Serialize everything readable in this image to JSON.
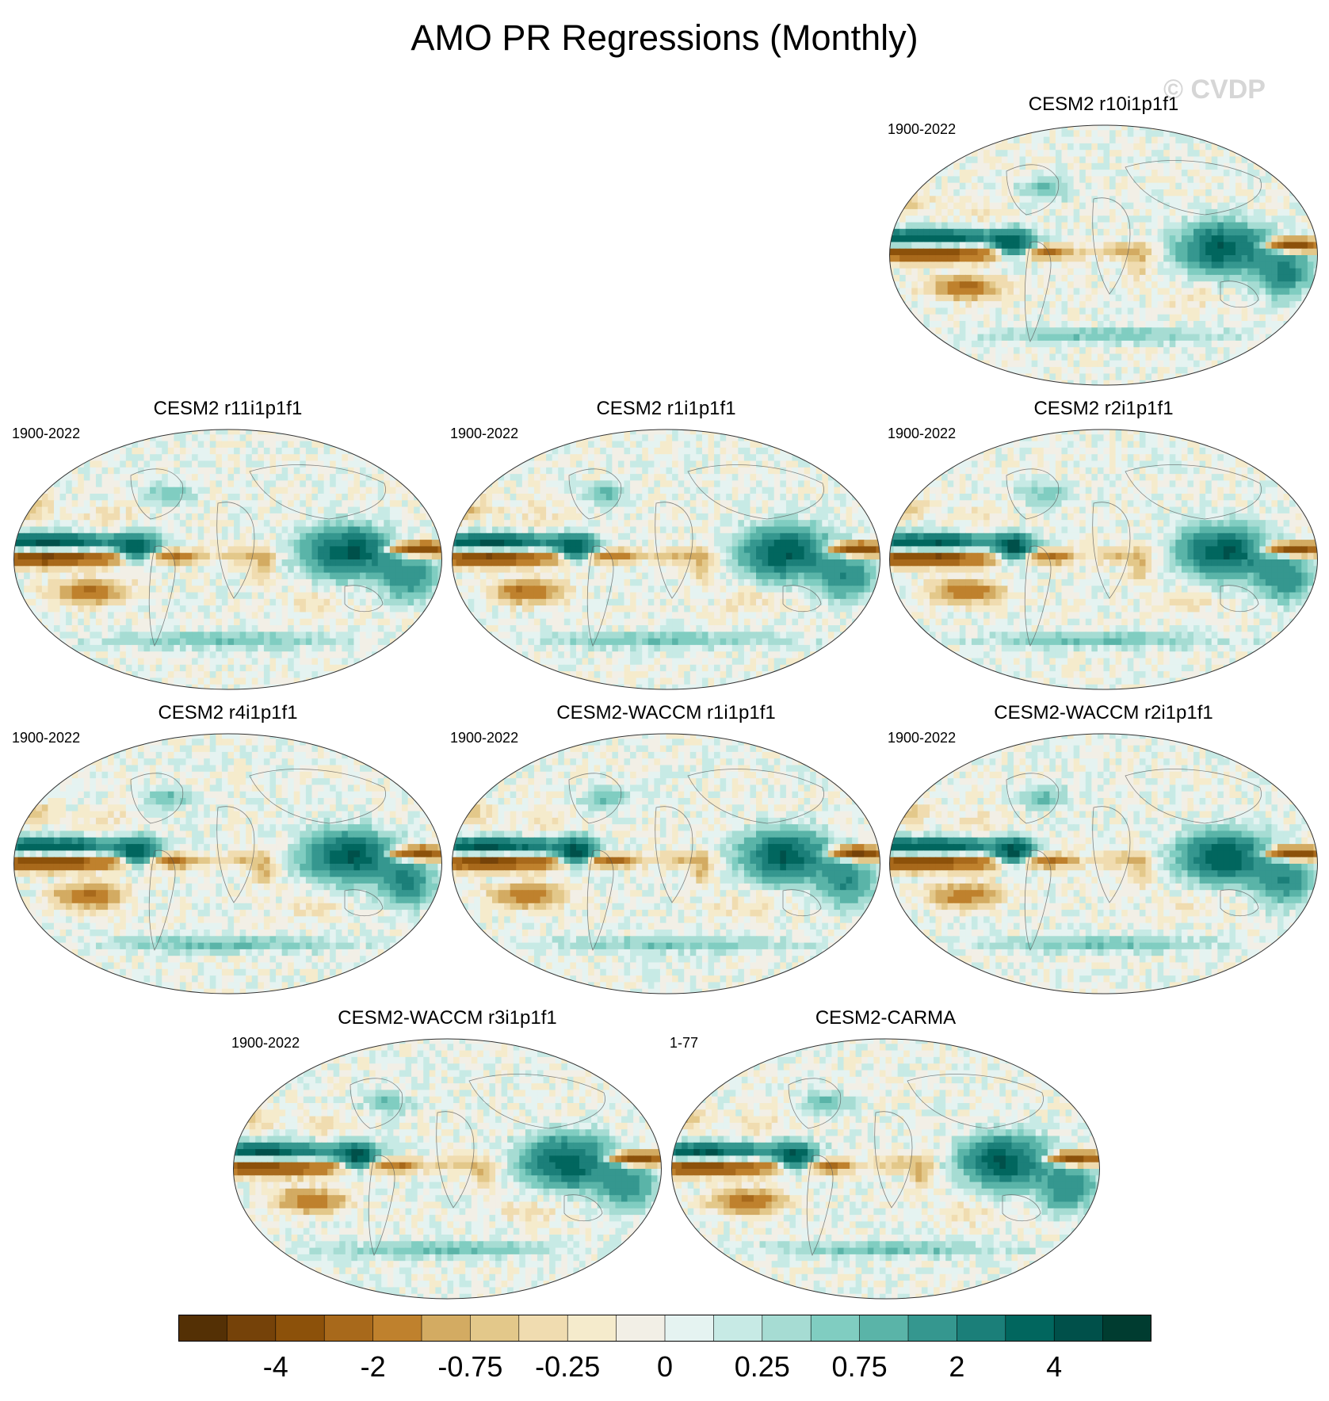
{
  "title": "AMO PR Regressions (Monthly)",
  "watermark": "© CVDP",
  "colors": {
    "palette": [
      "#543005",
      "#754209",
      "#8c510a",
      "#a8691b",
      "#bf812d",
      "#d3ab62",
      "#e3c88a",
      "#f0dcb0",
      "#f5ebcc",
      "#f2efe6",
      "#e5f3f1",
      "#c7eae5",
      "#a6dcd3",
      "#80cdc1",
      "#5ab4a8",
      "#35978f",
      "#1b7f79",
      "#01665e",
      "#00504a",
      "#003c30"
    ]
  },
  "panels": [
    {
      "id": "r10",
      "title": "CESM2 r10i1p1f1",
      "period": "1900-2022"
    },
    {
      "id": "r11",
      "title": "CESM2 r11i1p1f1",
      "period": "1900-2022"
    },
    {
      "id": "r1",
      "title": "CESM2 r1i1p1f1",
      "period": "1900-2022"
    },
    {
      "id": "r2",
      "title": "CESM2 r2i1p1f1",
      "period": "1900-2022"
    },
    {
      "id": "r4",
      "title": "CESM2 r4i1p1f1",
      "period": "1900-2022"
    },
    {
      "id": "w1",
      "title": "CESM2-WACCM r1i1p1f1",
      "period": "1900-2022"
    },
    {
      "id": "w2",
      "title": "CESM2-WACCM r2i1p1f1",
      "period": "1900-2022"
    },
    {
      "id": "w3",
      "title": "CESM2-WACCM r3i1p1f1",
      "period": "1900-2022"
    },
    {
      "id": "carma",
      "title": "CESM2-CARMA",
      "period": "1-77"
    }
  ],
  "chart_data": {
    "type": "heatmap",
    "projection": "robinson-like global maps",
    "variable": "PR regression onto AMO",
    "colorbar": {
      "tick_labels": [
        "-4",
        "-2",
        "-0.75",
        "-0.25",
        "0",
        "0.25",
        "0.75",
        "2",
        "4"
      ],
      "n_bins": 20,
      "tick_bins": [
        2,
        4,
        6,
        8,
        10,
        12,
        14,
        16,
        18
      ]
    },
    "pattern_features": [
      {
        "lon": -150,
        "lat": 12,
        "value": 4,
        "rx": 55,
        "ry": 5
      },
      {
        "lon": -150,
        "lat": 1,
        "value": -4,
        "rx": 55,
        "ry": 5
      },
      {
        "lon": -115,
        "lat": -22,
        "value": -2,
        "rx": 25,
        "ry": 7
      },
      {
        "lon": -170,
        "lat": 35,
        "value": -0.75,
        "rx": 22,
        "ry": 7
      },
      {
        "lon": -75,
        "lat": 8,
        "value": 4,
        "rx": 14,
        "ry": 8
      },
      {
        "lon": -45,
        "lat": 2,
        "value": -2,
        "rx": 20,
        "ry": 4
      },
      {
        "lon": 15,
        "lat": 3,
        "value": -0.75,
        "rx": 22,
        "ry": 5
      },
      {
        "lon": 30,
        "lat": -5,
        "value": -0.75,
        "rx": 8,
        "ry": 10
      },
      {
        "lon": 100,
        "lat": 5,
        "value": 4,
        "rx": 30,
        "ry": 14
      },
      {
        "lon": 160,
        "lat": 7,
        "value": -4,
        "rx": 25,
        "ry": 4
      },
      {
        "lon": 150,
        "lat": -12,
        "value": 2,
        "rx": 20,
        "ry": 14
      },
      {
        "lon": -100,
        "lat": 30,
        "value": -0.25,
        "rx": 20,
        "ry": 9
      },
      {
        "lon": -50,
        "lat": 45,
        "value": 0.75,
        "rx": 18,
        "ry": 7
      },
      {
        "lon": 0,
        "lat": -55,
        "value": 0.75,
        "rx": 90,
        "ry": 5
      },
      {
        "lon": 70,
        "lat": -30,
        "value": -0.25,
        "rx": 25,
        "ry": 8
      }
    ]
  }
}
